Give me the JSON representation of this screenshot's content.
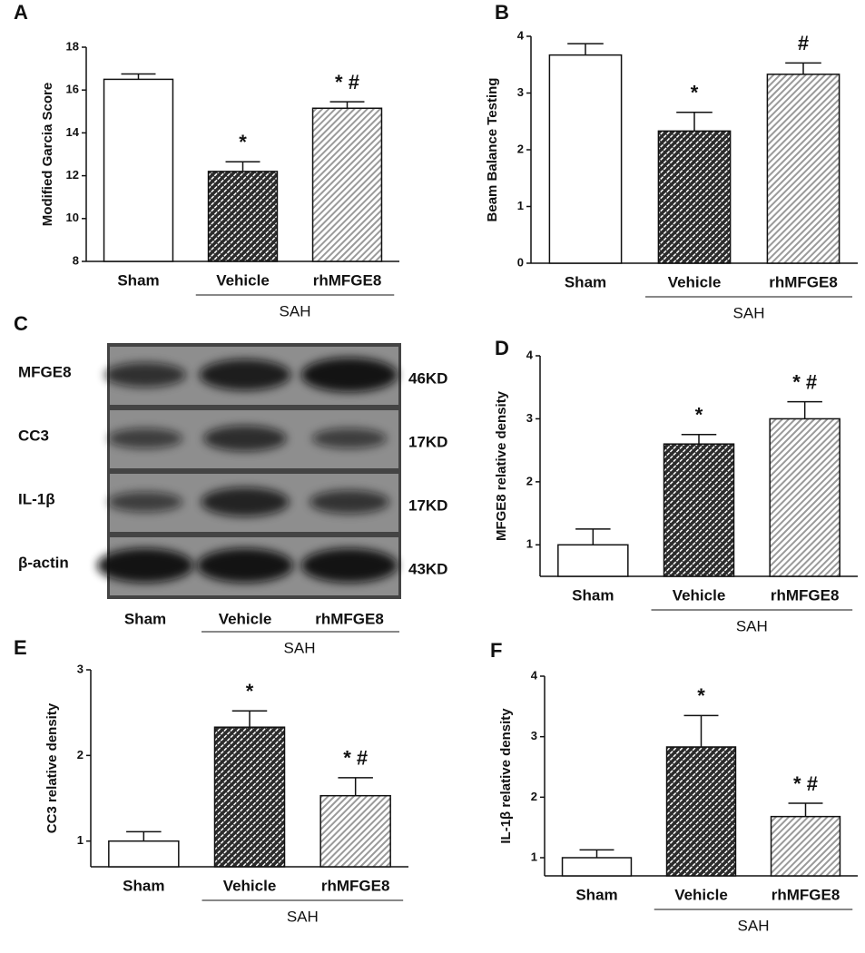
{
  "chart_data": [
    {
      "type": "bar",
      "panel": "A",
      "ylabel": "Modified Garcia Score",
      "categories": [
        "Sham",
        "Vehicle",
        "rhMFGE8"
      ],
      "group": "SAH",
      "values": [
        16.5,
        12.2,
        15.15
      ],
      "errors": [
        0.25,
        0.45,
        0.3
      ],
      "annotations": [
        null,
        "*",
        "* #"
      ],
      "colors": [
        "#ffffff",
        "#2b2b2b",
        "#9a9a9a"
      ],
      "ylim": [
        8,
        18
      ],
      "yticks": [
        8,
        10,
        12,
        14,
        16,
        18
      ]
    },
    {
      "type": "bar",
      "panel": "B",
      "ylabel": "Beam Balance Testing",
      "categories": [
        "Sham",
        "Vehicle",
        "rhMFGE8"
      ],
      "group": "SAH",
      "values": [
        3.67,
        2.33,
        3.33
      ],
      "errors": [
        0.2,
        0.33,
        0.2
      ],
      "annotations": [
        null,
        "*",
        "#"
      ],
      "colors": [
        "#ffffff",
        "#2b2b2b",
        "#9a9a9a"
      ],
      "ylim": [
        0,
        4
      ],
      "yticks": [
        0,
        1,
        2,
        3,
        4
      ]
    },
    {
      "type": "bar",
      "panel": "D",
      "ylabel": "MFGE8  relative density",
      "categories": [
        "Sham",
        "Vehicle",
        "rhMFGE8"
      ],
      "group": "SAH",
      "values": [
        1.0,
        2.6,
        3.0
      ],
      "errors": [
        0.25,
        0.15,
        0.27
      ],
      "annotations": [
        null,
        "*",
        "* #"
      ],
      "colors": [
        "#ffffff",
        "#2b2b2b",
        "#9a9a9a"
      ],
      "ylim": [
        0.5,
        4
      ],
      "yticks": [
        1,
        2,
        3,
        4
      ]
    },
    {
      "type": "bar",
      "panel": "E",
      "ylabel": "CC3 relative density",
      "categories": [
        "Sham",
        "Vehicle",
        "rhMFGE8"
      ],
      "group": "SAH",
      "values": [
        1.0,
        2.33,
        1.53
      ],
      "errors": [
        0.11,
        0.19,
        0.21
      ],
      "annotations": [
        null,
        "*",
        "* #"
      ],
      "colors": [
        "#ffffff",
        "#2b2b2b",
        "#9a9a9a"
      ],
      "ylim": [
        0.7,
        3
      ],
      "yticks": [
        1,
        2,
        3
      ]
    },
    {
      "type": "bar",
      "panel": "F",
      "ylabel": "IL-1β relative density",
      "categories": [
        "Sham",
        "Vehicle",
        "rhMFGE8"
      ],
      "group": "SAH",
      "values": [
        1.0,
        2.83,
        1.68
      ],
      "errors": [
        0.13,
        0.52,
        0.22
      ],
      "annotations": [
        null,
        "*",
        "* #"
      ],
      "colors": [
        "#ffffff",
        "#2b2b2b",
        "#9a9a9a"
      ],
      "ylim": [
        0.7,
        4
      ],
      "yticks": [
        1,
        2,
        3,
        4
      ]
    }
  ],
  "blot": {
    "panel": "C",
    "rows": [
      {
        "label": "MFGE8",
        "size": "46KD"
      },
      {
        "label": "CC3",
        "size": "17KD"
      },
      {
        "label": "IL-1β",
        "size": "17KD"
      },
      {
        "label": "β-actin",
        "size": "43KD"
      }
    ],
    "lanes": [
      "Sham",
      "Vehicle",
      "rhMFGE8"
    ],
    "group": "SAH"
  }
}
